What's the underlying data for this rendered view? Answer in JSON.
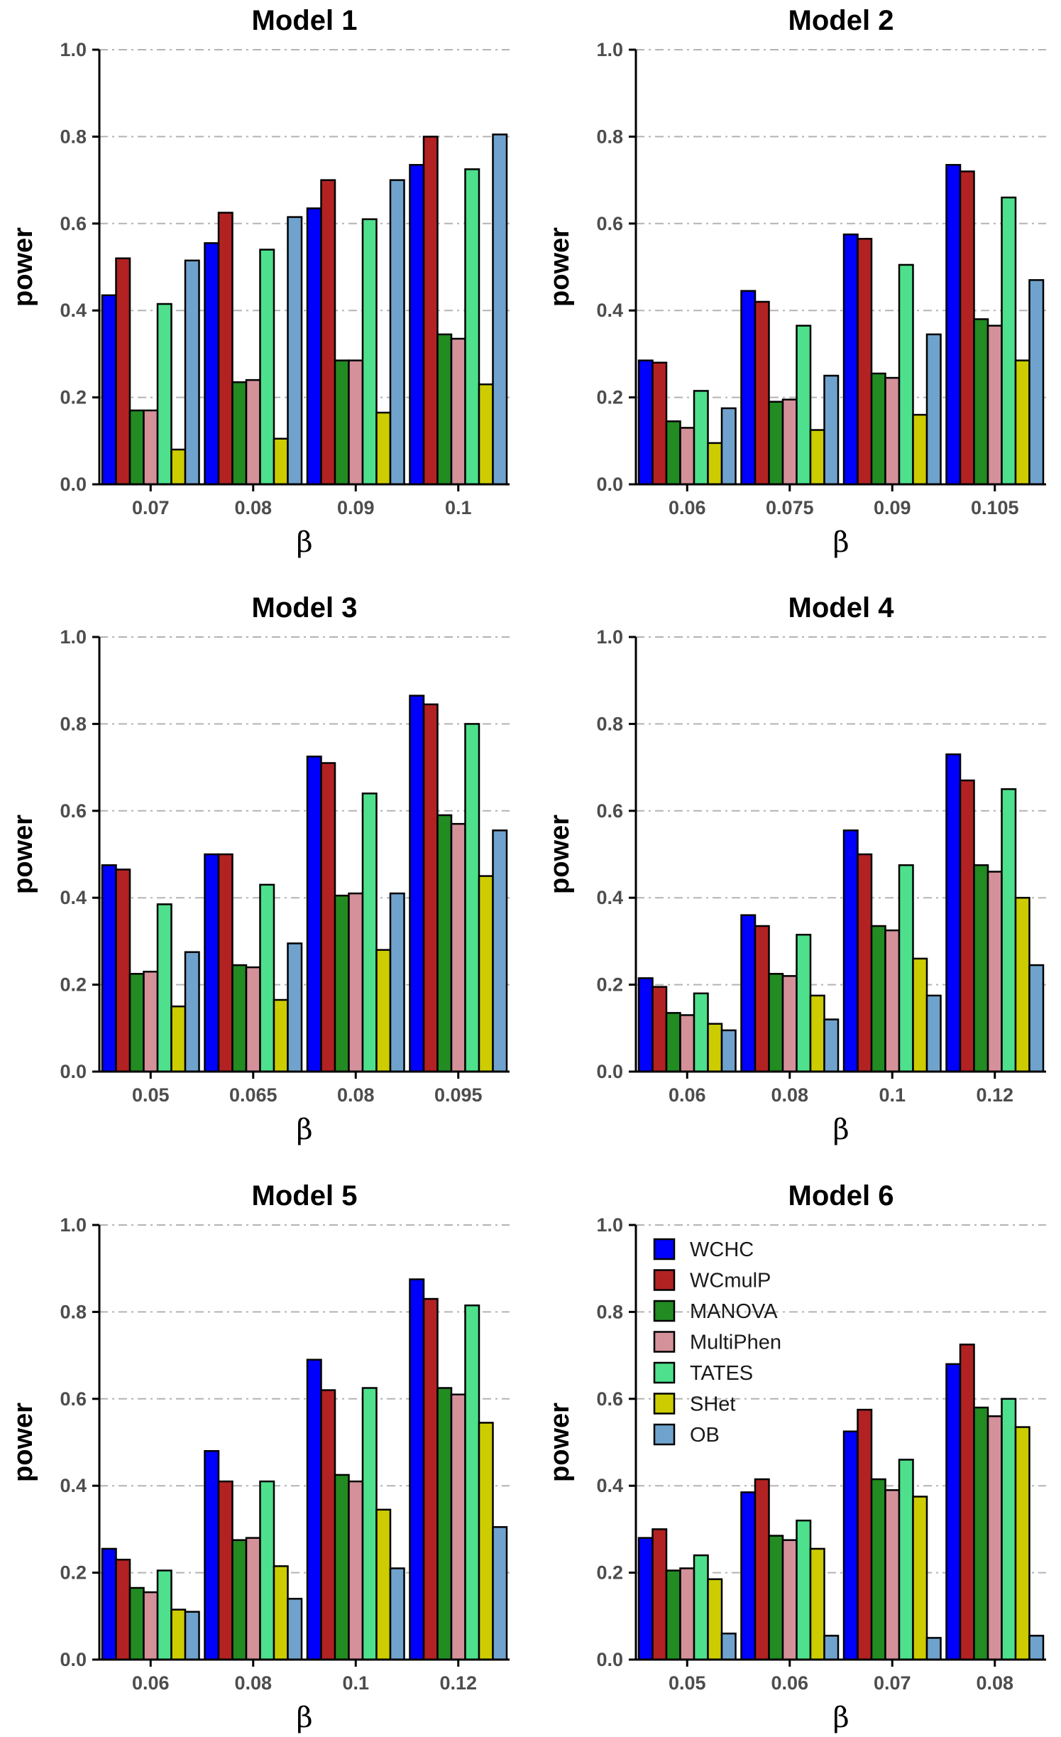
{
  "chart_data": [
    {
      "type": "bar",
      "title": "Model 1",
      "xlabel": "β",
      "ylabel": "power",
      "ylim": [
        0,
        1
      ],
      "yticks": [
        "0.0",
        "0.2",
        "0.4",
        "0.6",
        "0.8",
        "1.0"
      ],
      "grid": true,
      "categories": [
        "0.07",
        "0.08",
        "0.09",
        "0.1"
      ],
      "series": [
        {
          "name": "WCHC",
          "color": "#0000ff",
          "values": [
            0.435,
            0.555,
            0.635,
            0.735
          ]
        },
        {
          "name": "WCmulP",
          "color": "#b22222",
          "values": [
            0.52,
            0.625,
            0.7,
            0.8
          ]
        },
        {
          "name": "MANOVA",
          "color": "#228b22",
          "values": [
            0.17,
            0.235,
            0.285,
            0.345
          ]
        },
        {
          "name": "MultiPhen",
          "color": "#d4919a",
          "values": [
            0.17,
            0.24,
            0.285,
            0.335
          ]
        },
        {
          "name": "TATES",
          "color": "#4ee08c",
          "values": [
            0.415,
            0.54,
            0.61,
            0.725
          ]
        },
        {
          "name": "SHet",
          "color": "#cccc00",
          "values": [
            0.08,
            0.105,
            0.165,
            0.23
          ]
        },
        {
          "name": "OB",
          "color": "#6fa3cd",
          "values": [
            0.515,
            0.615,
            0.7,
            0.805
          ]
        }
      ]
    },
    {
      "type": "bar",
      "title": "Model 2",
      "xlabel": "β",
      "ylabel": "power",
      "ylim": [
        0,
        1
      ],
      "yticks": [
        "0.0",
        "0.2",
        "0.4",
        "0.6",
        "0.8",
        "1.0"
      ],
      "grid": true,
      "categories": [
        "0.06",
        "0.075",
        "0.09",
        "0.105"
      ],
      "series": [
        {
          "name": "WCHC",
          "color": "#0000ff",
          "values": [
            0.285,
            0.445,
            0.575,
            0.735
          ]
        },
        {
          "name": "WCmulP",
          "color": "#b22222",
          "values": [
            0.28,
            0.42,
            0.565,
            0.72
          ]
        },
        {
          "name": "MANOVA",
          "color": "#228b22",
          "values": [
            0.145,
            0.19,
            0.255,
            0.38
          ]
        },
        {
          "name": "MultiPhen",
          "color": "#d4919a",
          "values": [
            0.13,
            0.195,
            0.245,
            0.365
          ]
        },
        {
          "name": "TATES",
          "color": "#4ee08c",
          "values": [
            0.215,
            0.365,
            0.505,
            0.66
          ]
        },
        {
          "name": "SHet",
          "color": "#cccc00",
          "values": [
            0.095,
            0.125,
            0.16,
            0.285
          ]
        },
        {
          "name": "OB",
          "color": "#6fa3cd",
          "values": [
            0.175,
            0.25,
            0.345,
            0.47
          ]
        }
      ]
    },
    {
      "type": "bar",
      "title": "Model 3",
      "xlabel": "β",
      "ylabel": "power",
      "ylim": [
        0,
        1
      ],
      "yticks": [
        "0.0",
        "0.2",
        "0.4",
        "0.6",
        "0.8",
        "1.0"
      ],
      "grid": true,
      "categories": [
        "0.05",
        "0.065",
        "0.08",
        "0.095"
      ],
      "series": [
        {
          "name": "WCHC",
          "color": "#0000ff",
          "values": [
            0.475,
            0.5,
            0.725,
            0.865
          ]
        },
        {
          "name": "WCmulP",
          "color": "#b22222",
          "values": [
            0.465,
            0.5,
            0.71,
            0.845
          ]
        },
        {
          "name": "MANOVA",
          "color": "#228b22",
          "values": [
            0.225,
            0.245,
            0.405,
            0.59
          ]
        },
        {
          "name": "MultiPhen",
          "color": "#d4919a",
          "values": [
            0.23,
            0.24,
            0.41,
            0.57
          ]
        },
        {
          "name": "TATES",
          "color": "#4ee08c",
          "values": [
            0.385,
            0.43,
            0.64,
            0.8
          ]
        },
        {
          "name": "SHet",
          "color": "#cccc00",
          "values": [
            0.15,
            0.165,
            0.28,
            0.45
          ]
        },
        {
          "name": "OB",
          "color": "#6fa3cd",
          "values": [
            0.275,
            0.295,
            0.41,
            0.555
          ]
        }
      ]
    },
    {
      "type": "bar",
      "title": "Model 4",
      "xlabel": "β",
      "ylabel": "power",
      "ylim": [
        0,
        1
      ],
      "yticks": [
        "0.0",
        "0.2",
        "0.4",
        "0.6",
        "0.8",
        "1.0"
      ],
      "grid": true,
      "categories": [
        "0.06",
        "0.08",
        "0.1",
        "0.12"
      ],
      "series": [
        {
          "name": "WCHC",
          "color": "#0000ff",
          "values": [
            0.215,
            0.36,
            0.555,
            0.73
          ]
        },
        {
          "name": "WCmulP",
          "color": "#b22222",
          "values": [
            0.195,
            0.335,
            0.5,
            0.67
          ]
        },
        {
          "name": "MANOVA",
          "color": "#228b22",
          "values": [
            0.135,
            0.225,
            0.335,
            0.475
          ]
        },
        {
          "name": "MultiPhen",
          "color": "#d4919a",
          "values": [
            0.13,
            0.22,
            0.325,
            0.46
          ]
        },
        {
          "name": "TATES",
          "color": "#4ee08c",
          "values": [
            0.18,
            0.315,
            0.475,
            0.65
          ]
        },
        {
          "name": "SHet",
          "color": "#cccc00",
          "values": [
            0.11,
            0.175,
            0.26,
            0.4
          ]
        },
        {
          "name": "OB",
          "color": "#6fa3cd",
          "values": [
            0.095,
            0.12,
            0.175,
            0.245
          ]
        }
      ]
    },
    {
      "type": "bar",
      "title": "Model 5",
      "xlabel": "β",
      "ylabel": "power",
      "ylim": [
        0,
        1
      ],
      "yticks": [
        "0.0",
        "0.2",
        "0.4",
        "0.6",
        "0.8",
        "1.0"
      ],
      "grid": true,
      "categories": [
        "0.06",
        "0.08",
        "0.1",
        "0.12"
      ],
      "series": [
        {
          "name": "WCHC",
          "color": "#0000ff",
          "values": [
            0.255,
            0.48,
            0.69,
            0.875
          ]
        },
        {
          "name": "WCmulP",
          "color": "#b22222",
          "values": [
            0.23,
            0.41,
            0.62,
            0.83
          ]
        },
        {
          "name": "MANOVA",
          "color": "#228b22",
          "values": [
            0.165,
            0.275,
            0.425,
            0.625
          ]
        },
        {
          "name": "MultiPhen",
          "color": "#d4919a",
          "values": [
            0.155,
            0.28,
            0.41,
            0.61
          ]
        },
        {
          "name": "TATES",
          "color": "#4ee08c",
          "values": [
            0.205,
            0.41,
            0.625,
            0.815
          ]
        },
        {
          "name": "SHet",
          "color": "#cccc00",
          "values": [
            0.115,
            0.215,
            0.345,
            0.545
          ]
        },
        {
          "name": "OB",
          "color": "#6fa3cd",
          "values": [
            0.11,
            0.14,
            0.21,
            0.305
          ]
        }
      ]
    },
    {
      "type": "bar",
      "title": "Model 6",
      "xlabel": "β",
      "ylabel": "power",
      "ylim": [
        0,
        1
      ],
      "yticks": [
        "0.0",
        "0.2",
        "0.4",
        "0.6",
        "0.8",
        "1.0"
      ],
      "grid": true,
      "legend": "top-left",
      "categories": [
        "0.05",
        "0.06",
        "0.07",
        "0.08"
      ],
      "series": [
        {
          "name": "WCHC",
          "color": "#0000ff",
          "values": [
            0.28,
            0.385,
            0.525,
            0.68
          ]
        },
        {
          "name": "WCmulP",
          "color": "#b22222",
          "values": [
            0.3,
            0.415,
            0.575,
            0.725
          ]
        },
        {
          "name": "MANOVA",
          "color": "#228b22",
          "values": [
            0.205,
            0.285,
            0.415,
            0.58
          ]
        },
        {
          "name": "MultiPhen",
          "color": "#d4919a",
          "values": [
            0.21,
            0.275,
            0.39,
            0.56
          ]
        },
        {
          "name": "TATES",
          "color": "#4ee08c",
          "values": [
            0.24,
            0.32,
            0.46,
            0.6
          ]
        },
        {
          "name": "SHet",
          "color": "#cccc00",
          "values": [
            0.185,
            0.255,
            0.375,
            0.535
          ]
        },
        {
          "name": "OB",
          "color": "#6fa3cd",
          "values": [
            0.06,
            0.055,
            0.05,
            0.055
          ]
        }
      ]
    }
  ]
}
